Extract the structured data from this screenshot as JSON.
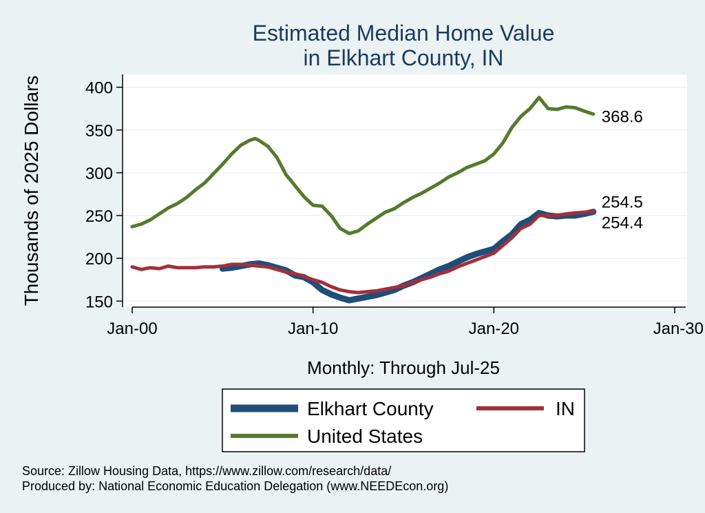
{
  "chart_data": {
    "type": "line",
    "title": [
      "Estimated Median Home Value",
      "in Elkhart County, IN"
    ],
    "ylabel": "Thousands of 2025 Dollars",
    "xlabel": "Monthly: Through Jul-25",
    "ylim": [
      143,
      415
    ],
    "xlim": [
      -0.3,
      30.3
    ],
    "yticks": [
      150,
      200,
      250,
      300,
      350,
      400
    ],
    "xticks": [
      {
        "value": 0,
        "label": "Jan-00"
      },
      {
        "value": 10,
        "label": "Jan-10"
      },
      {
        "value": 20,
        "label": "Jan-20"
      },
      {
        "value": 30,
        "label": "Jan-30"
      }
    ],
    "series": [
      {
        "name": "Elkhart County",
        "color": "#1f4e79",
        "end_label": "254.4",
        "points": [
          [
            5,
            188
          ],
          [
            5.5,
            189
          ],
          [
            6,
            191
          ],
          [
            6.5,
            193
          ],
          [
            7,
            194
          ],
          [
            7.5,
            192
          ],
          [
            8,
            189
          ],
          [
            8.5,
            186
          ],
          [
            9,
            180
          ],
          [
            9.5,
            178
          ],
          [
            10,
            172
          ],
          [
            10.5,
            163
          ],
          [
            11,
            158
          ],
          [
            11.5,
            154
          ],
          [
            12,
            151
          ],
          [
            12.5,
            153
          ],
          [
            13,
            155
          ],
          [
            13.5,
            157
          ],
          [
            14,
            160
          ],
          [
            14.5,
            163
          ],
          [
            15,
            168
          ],
          [
            15.5,
            172
          ],
          [
            16,
            177
          ],
          [
            16.5,
            182
          ],
          [
            17,
            187
          ],
          [
            17.5,
            191
          ],
          [
            18,
            196
          ],
          [
            18.5,
            201
          ],
          [
            19,
            205
          ],
          [
            19.5,
            208
          ],
          [
            20,
            211
          ],
          [
            20.5,
            220
          ],
          [
            21,
            228
          ],
          [
            21.5,
            240
          ],
          [
            22,
            245
          ],
          [
            22.5,
            253
          ],
          [
            23,
            250
          ],
          [
            23.5,
            249
          ],
          [
            24,
            250
          ],
          [
            24.5,
            250
          ],
          [
            25,
            252
          ],
          [
            25.5,
            254.4
          ]
        ]
      },
      {
        "name": "IN",
        "color": "#a2303a",
        "end_label": "254.5",
        "points": [
          [
            0,
            190
          ],
          [
            0.5,
            187
          ],
          [
            1,
            189
          ],
          [
            1.5,
            188
          ],
          [
            2,
            191
          ],
          [
            2.5,
            189
          ],
          [
            3,
            189
          ],
          [
            3.5,
            189
          ],
          [
            4,
            190
          ],
          [
            4.5,
            190
          ],
          [
            5,
            191
          ],
          [
            5.5,
            193
          ],
          [
            6,
            193
          ],
          [
            6.5,
            192
          ],
          [
            7,
            191
          ],
          [
            7.5,
            190
          ],
          [
            8,
            187
          ],
          [
            8.5,
            184
          ],
          [
            9,
            182
          ],
          [
            9.5,
            179
          ],
          [
            10,
            175
          ],
          [
            10.5,
            172
          ],
          [
            11,
            167
          ],
          [
            11.5,
            163
          ],
          [
            12,
            161
          ],
          [
            12.5,
            160
          ],
          [
            13,
            161
          ],
          [
            13.5,
            162
          ],
          [
            14,
            164
          ],
          [
            14.5,
            166
          ],
          [
            15,
            168
          ],
          [
            15.5,
            172
          ],
          [
            16,
            175
          ],
          [
            16.5,
            178
          ],
          [
            17,
            182
          ],
          [
            17.5,
            185
          ],
          [
            18,
            190
          ],
          [
            18.5,
            194
          ],
          [
            19,
            198
          ],
          [
            19.5,
            202
          ],
          [
            20,
            206
          ],
          [
            20.5,
            215
          ],
          [
            21,
            224
          ],
          [
            21.5,
            235
          ],
          [
            22,
            240
          ],
          [
            22.5,
            250
          ],
          [
            23,
            250
          ],
          [
            23.5,
            250
          ],
          [
            24,
            252
          ],
          [
            24.5,
            253
          ],
          [
            25,
            254
          ],
          [
            25.5,
            254.5
          ]
        ]
      },
      {
        "name": "United States",
        "color": "#557a2e",
        "end_label": "368.6",
        "points": [
          [
            0,
            237
          ],
          [
            0.5,
            240
          ],
          [
            1,
            245
          ],
          [
            1.5,
            252
          ],
          [
            2,
            259
          ],
          [
            2.5,
            264
          ],
          [
            3,
            271
          ],
          [
            3.5,
            280
          ],
          [
            4,
            288
          ],
          [
            4.5,
            299
          ],
          [
            5,
            310
          ],
          [
            5.5,
            322
          ],
          [
            6,
            332
          ],
          [
            6.5,
            338
          ],
          [
            6.8,
            340
          ],
          [
            7,
            338
          ],
          [
            7.5,
            331
          ],
          [
            8,
            318
          ],
          [
            8.5,
            298
          ],
          [
            9,
            285
          ],
          [
            9.5,
            272
          ],
          [
            10,
            262
          ],
          [
            10.5,
            261
          ],
          [
            11,
            250
          ],
          [
            11.5,
            235
          ],
          [
            12,
            229
          ],
          [
            12.5,
            232
          ],
          [
            13,
            240
          ],
          [
            13.5,
            247
          ],
          [
            14,
            254
          ],
          [
            14.5,
            258
          ],
          [
            15,
            265
          ],
          [
            15.5,
            271
          ],
          [
            16,
            276
          ],
          [
            16.5,
            282
          ],
          [
            17,
            288
          ],
          [
            17.5,
            295
          ],
          [
            18,
            300
          ],
          [
            18.5,
            306
          ],
          [
            19,
            310
          ],
          [
            19.5,
            314
          ],
          [
            20,
            322
          ],
          [
            20.5,
            335
          ],
          [
            21,
            353
          ],
          [
            21.5,
            366
          ],
          [
            22,
            375
          ],
          [
            22.5,
            388
          ],
          [
            23,
            375
          ],
          [
            23.5,
            374
          ],
          [
            24,
            377
          ],
          [
            24.5,
            376
          ],
          [
            25,
            372
          ],
          [
            25.5,
            368.6
          ]
        ]
      }
    ]
  },
  "legend": {
    "items": [
      {
        "label": "Elkhart County",
        "color": "#1f4e79"
      },
      {
        "label": "IN",
        "color": "#a2303a"
      },
      {
        "label": "United States",
        "color": "#557a2e"
      }
    ]
  },
  "footer": {
    "source": "Source: Zillow Housing Data, https://www.zillow.com/research/data/",
    "produced": "Produced by: National Economic Education Delegation (www.NEEDEcon.org)"
  }
}
